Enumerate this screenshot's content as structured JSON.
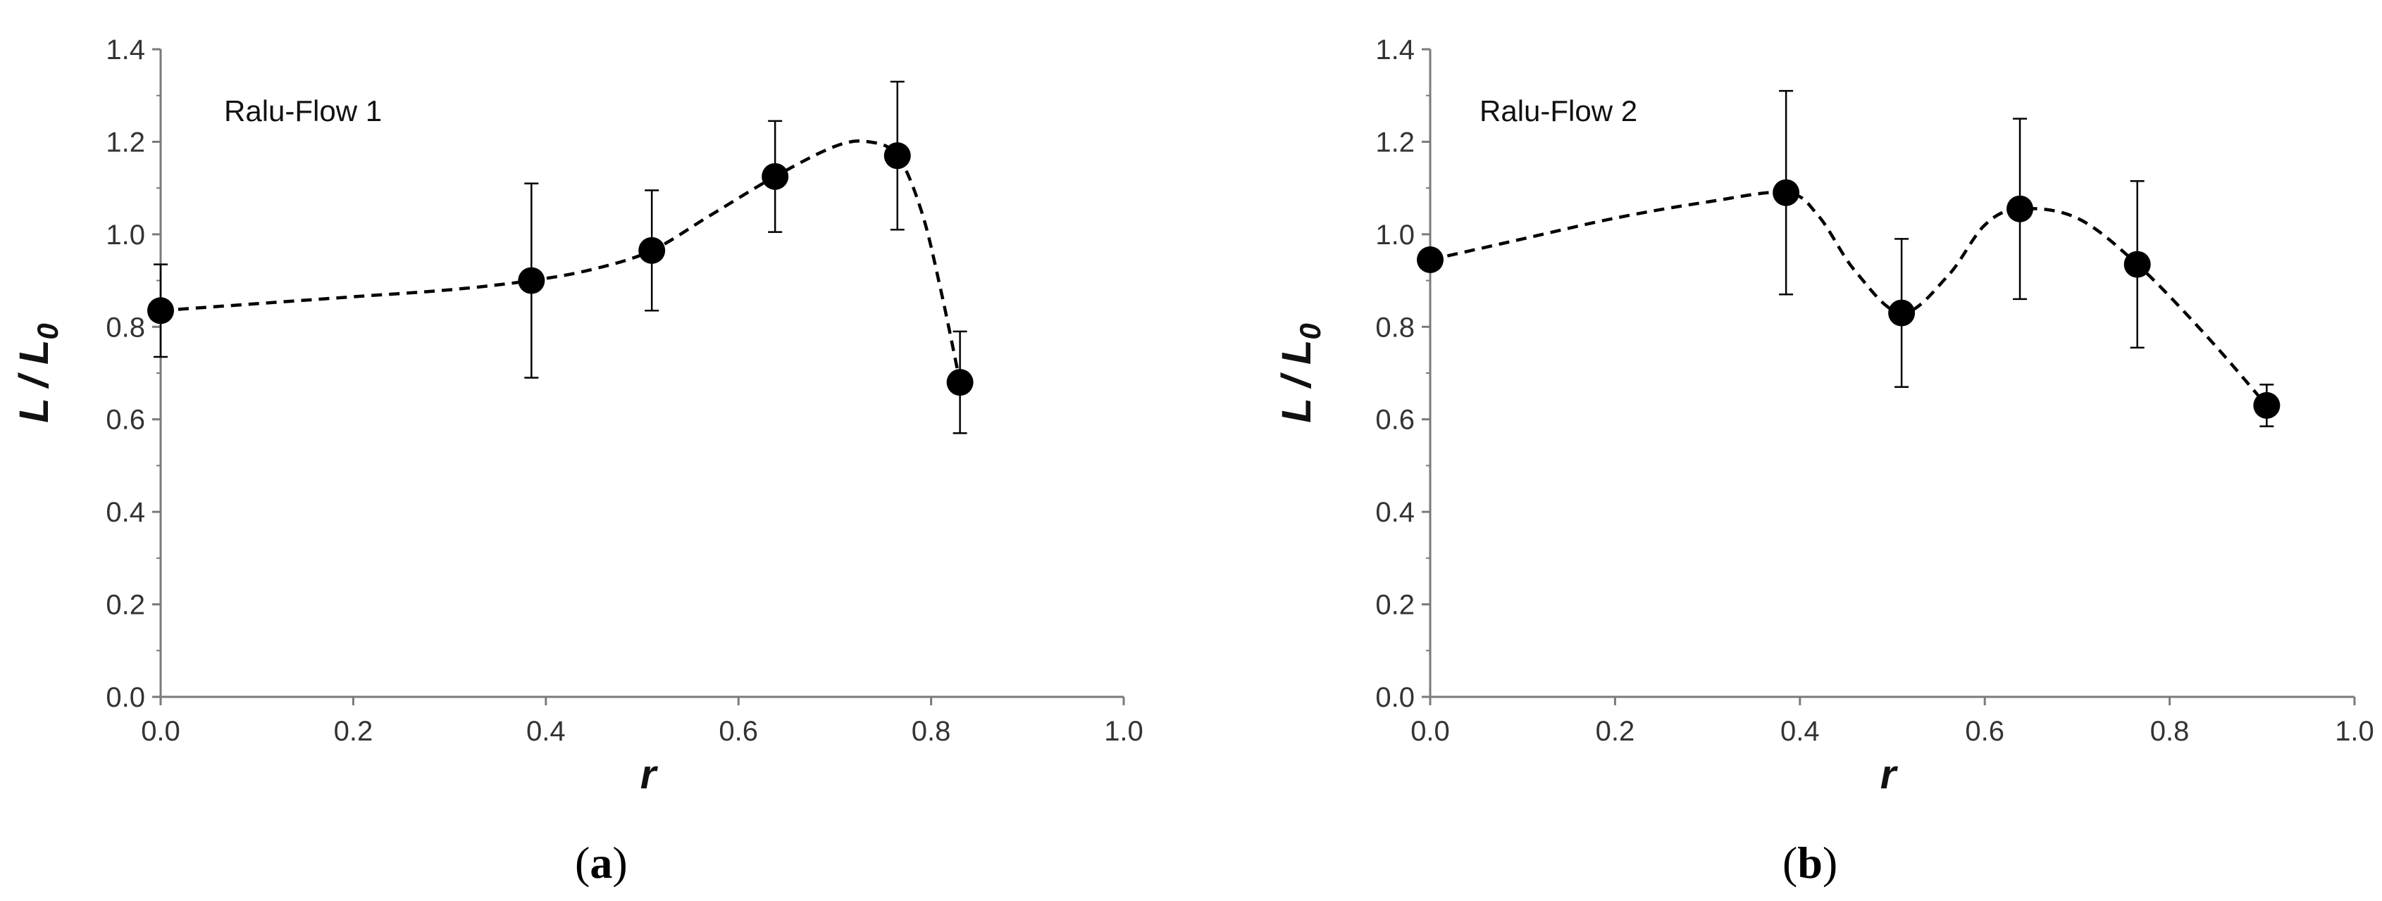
{
  "chart_data": [
    {
      "type": "scatter",
      "panel": "(a)",
      "panel_letter": "a",
      "annotation": "Ralu-Flow 1",
      "xlabel": "r",
      "ylabel": "L / L0",
      "ylabel_main": "L / L",
      "ylabel_sub": "0",
      "xlim": [
        0.0,
        1.0
      ],
      "ylim": [
        0.0,
        1.4
      ],
      "xticks": [
        "0.0",
        "0.2",
        "0.4",
        "0.6",
        "0.8",
        "1.0"
      ],
      "yticks": [
        "0.0",
        "0.2",
        "0.4",
        "0.6",
        "0.8",
        "1.0",
        "1.2",
        "1.4"
      ],
      "grid": false,
      "legend": "none",
      "trend_line": "dashed",
      "points": [
        {
          "x": 0.0,
          "y": 0.835,
          "err": 0.1
        },
        {
          "x": 0.385,
          "y": 0.9,
          "err": 0.21
        },
        {
          "x": 0.51,
          "y": 0.965,
          "err": 0.13
        },
        {
          "x": 0.638,
          "y": 1.125,
          "err": 0.12
        },
        {
          "x": 0.765,
          "y": 1.17,
          "err": 0.16
        },
        {
          "x": 0.83,
          "y": 0.68,
          "err": 0.11
        }
      ],
      "curve": [
        [
          0.0,
          0.835
        ],
        [
          0.1,
          0.85
        ],
        [
          0.2,
          0.865
        ],
        [
          0.3,
          0.88
        ],
        [
          0.385,
          0.9
        ],
        [
          0.45,
          0.925
        ],
        [
          0.51,
          0.965
        ],
        [
          0.57,
          1.04
        ],
        [
          0.638,
          1.125
        ],
        [
          0.7,
          1.19
        ],
        [
          0.735,
          1.2
        ],
        [
          0.765,
          1.17
        ],
        [
          0.79,
          1.05
        ],
        [
          0.81,
          0.88
        ],
        [
          0.83,
          0.68
        ]
      ],
      "colors": {
        "marker": "#000000",
        "line": "#000000"
      }
    },
    {
      "type": "scatter",
      "panel": "(b)",
      "panel_letter": "b",
      "annotation": "Ralu-Flow 2",
      "xlabel": "r",
      "ylabel": "L / L0",
      "ylabel_main": "L / L",
      "ylabel_sub": "0",
      "xlim": [
        0.0,
        1.0
      ],
      "ylim": [
        0.0,
        1.4
      ],
      "xticks": [
        "0.0",
        "0.2",
        "0.4",
        "0.6",
        "0.8",
        "1.0"
      ],
      "yticks": [
        "0.0",
        "0.2",
        "0.4",
        "0.6",
        "0.8",
        "1.0",
        "1.2",
        "1.4"
      ],
      "grid": false,
      "legend": "none",
      "trend_line": "dashed",
      "points": [
        {
          "x": 0.0,
          "y": 0.945,
          "err": 0.0
        },
        {
          "x": 0.385,
          "y": 1.09,
          "err": 0.22
        },
        {
          "x": 0.51,
          "y": 0.83,
          "err": 0.16
        },
        {
          "x": 0.638,
          "y": 1.055,
          "err": 0.195
        },
        {
          "x": 0.765,
          "y": 0.935,
          "err": 0.18
        },
        {
          "x": 0.905,
          "y": 0.63,
          "err": 0.045
        }
      ],
      "curve": [
        [
          0.0,
          0.945
        ],
        [
          0.1,
          0.99
        ],
        [
          0.2,
          1.035
        ],
        [
          0.3,
          1.07
        ],
        [
          0.385,
          1.09
        ],
        [
          0.42,
          1.04
        ],
        [
          0.46,
          0.92
        ],
        [
          0.51,
          0.83
        ],
        [
          0.56,
          0.91
        ],
        [
          0.6,
          1.02
        ],
        [
          0.638,
          1.055
        ],
        [
          0.7,
          1.035
        ],
        [
          0.765,
          0.935
        ],
        [
          0.84,
          0.78
        ],
        [
          0.905,
          0.63
        ]
      ],
      "colors": {
        "marker": "#000000",
        "line": "#000000"
      }
    }
  ]
}
